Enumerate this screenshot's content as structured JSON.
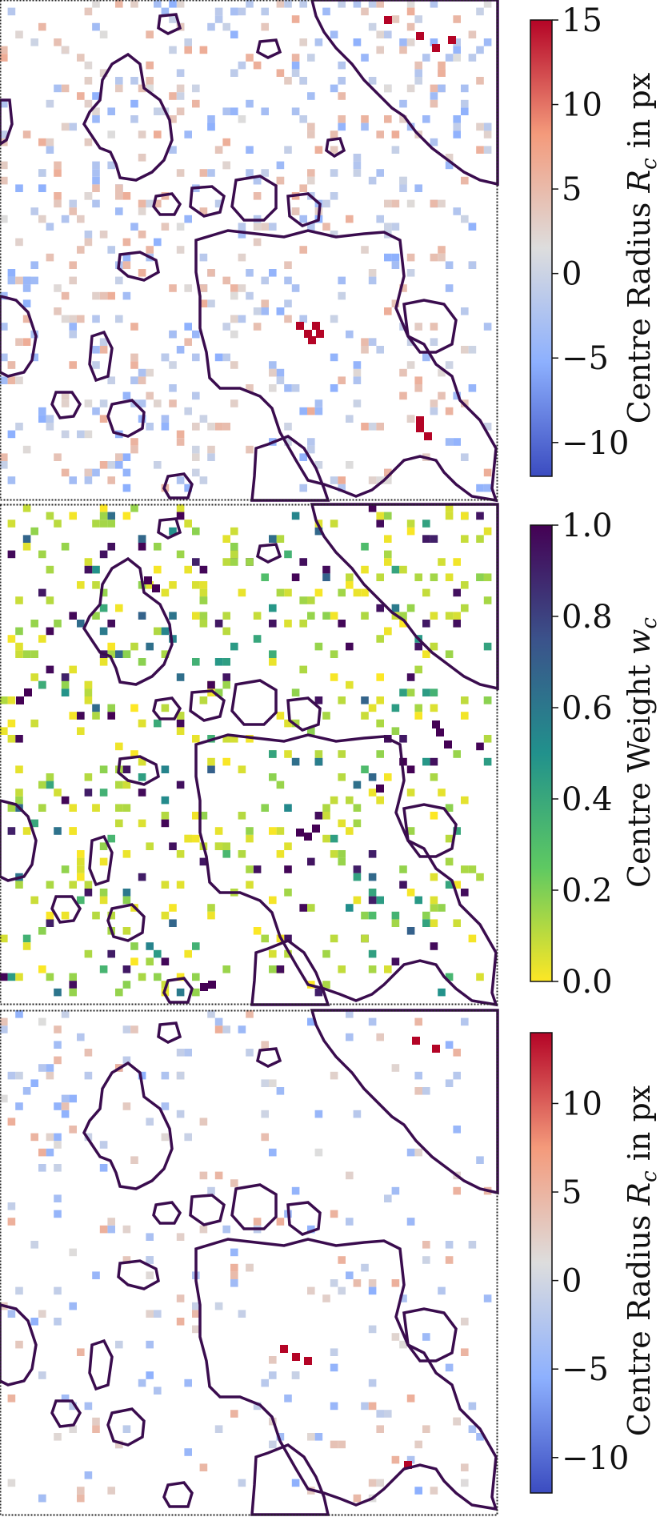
{
  "chart_data": [
    {
      "type": "heatmap",
      "panel": "top",
      "colormap": "coolwarm",
      "colorbar": {
        "label": "Centre Radius R_c in px",
        "label_parts": [
          "Centre Radius ",
          "R",
          "c",
          " in px"
        ],
        "range": [
          -12,
          15
        ],
        "ticks": [
          -10,
          -5,
          0,
          5,
          10,
          15
        ],
        "tick_labels": [
          "−10",
          "−5",
          "0",
          "5",
          "10",
          "15"
        ]
      }
    },
    {
      "type": "heatmap",
      "panel": "middle",
      "colormap": "viridis_r",
      "colorbar": {
        "label": "Centre Weight w_c",
        "label_parts": [
          "Centre Weight ",
          "w",
          "c",
          ""
        ],
        "range": [
          0.0,
          1.0
        ],
        "ticks": [
          0.0,
          0.2,
          0.4,
          0.6,
          0.8,
          1.0
        ],
        "tick_labels": [
          "0.0",
          "0.2",
          "0.4",
          "0.6",
          "0.8",
          "1.0"
        ]
      }
    },
    {
      "type": "heatmap",
      "panel": "bottom",
      "colormap": "coolwarm",
      "colorbar": {
        "label": "Centre Radius R_c in px",
        "label_parts": [
          "Centre Radius ",
          "R",
          "c",
          " in px"
        ],
        "range": [
          -12,
          14
        ],
        "ticks": [
          -10,
          -5,
          0,
          5,
          10
        ],
        "tick_labels": [
          "−10",
          "−5",
          "0",
          "5",
          "10"
        ]
      }
    }
  ],
  "colors": {
    "contour": "#3a0c4e",
    "coolwarm_low": "#3b4cc0",
    "coolwarm_mid": "#dddddd",
    "coolwarm_high": "#b40426",
    "viridis_low": "#fde725",
    "viridis_high": "#440154"
  }
}
